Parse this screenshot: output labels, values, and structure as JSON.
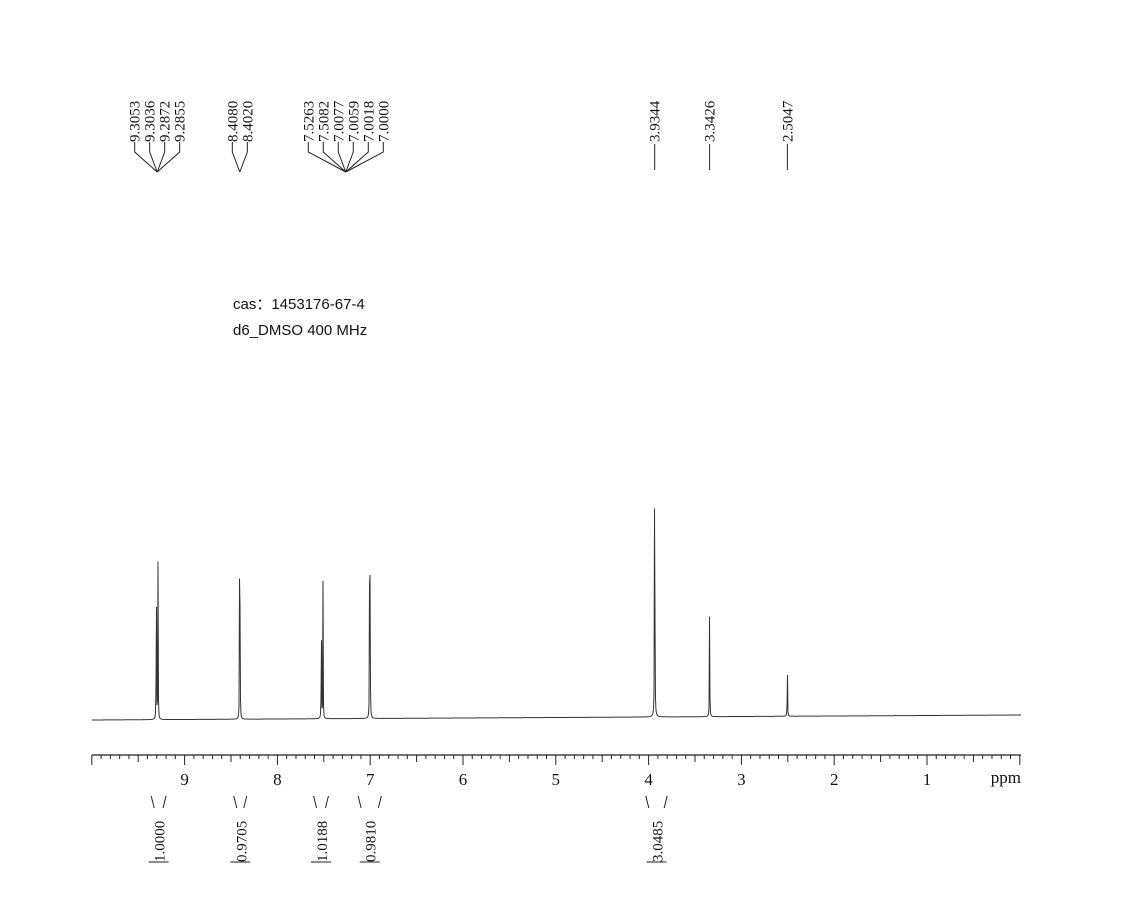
{
  "info": {
    "cas": "cas：1453176-67-4",
    "solvent": "d6_DMSO  400  MHz"
  },
  "chart_data": {
    "type": "line",
    "title": "",
    "xlabel": "ppm",
    "ylabel": "",
    "xlim": [
      10.0,
      0.0
    ],
    "x_direction": "reversed",
    "grid": false,
    "x_ticks": [
      9,
      8,
      7,
      6,
      5,
      4,
      3,
      2,
      1
    ],
    "x_tick_labels": [
      "9",
      "8",
      "7",
      "6",
      "5",
      "4",
      "3",
      "2",
      "1"
    ],
    "peaks": [
      {
        "ppm": 9.3053,
        "height": 0.18
      },
      {
        "ppm": 9.3036,
        "height": 0.19
      },
      {
        "ppm": 9.2872,
        "height": 0.19
      },
      {
        "ppm": 9.2855,
        "height": 0.18
      },
      {
        "ppm": 8.408,
        "height": 0.26
      },
      {
        "ppm": 8.402,
        "height": 0.26
      },
      {
        "ppm": 7.5263,
        "height": 0.27
      },
      {
        "ppm": 7.5082,
        "height": 0.27
      },
      {
        "ppm": 7.0077,
        "height": 0.15
      },
      {
        "ppm": 7.0059,
        "height": 0.16
      },
      {
        "ppm": 7.0018,
        "height": 0.18
      },
      {
        "ppm": 7.0,
        "height": 0.16
      },
      {
        "ppm": 3.9344,
        "height": 1.0
      },
      {
        "ppm": 3.3426,
        "height": 0.28
      },
      {
        "ppm": 2.5047,
        "height": 0.14
      }
    ],
    "peak_label_groups": [
      {
        "labels": [
          "9.3053",
          "9.3036",
          "9.2872",
          "9.2855"
        ]
      },
      {
        "labels": [
          "8.4080",
          "8.4020"
        ]
      },
      {
        "labels": [
          "7.5263",
          "7.5082",
          "7.0077",
          "7.0059",
          "7.0018",
          "7.0000"
        ]
      },
      {
        "labels": [
          "3.9344"
        ]
      },
      {
        "labels": [
          "3.3426"
        ]
      },
      {
        "labels": [
          "2.5047"
        ]
      }
    ],
    "integrals": [
      {
        "from": 9.36,
        "to": 9.2,
        "value": "1.0000"
      },
      {
        "from": 8.47,
        "to": 8.33,
        "value": "0.9705"
      },
      {
        "from": 7.61,
        "to": 7.45,
        "value": "1.0188"
      },
      {
        "from": 7.13,
        "to": 6.88,
        "value": "0.9810"
      },
      {
        "from": 4.03,
        "to": 3.8,
        "value": "3.0485"
      }
    ]
  }
}
